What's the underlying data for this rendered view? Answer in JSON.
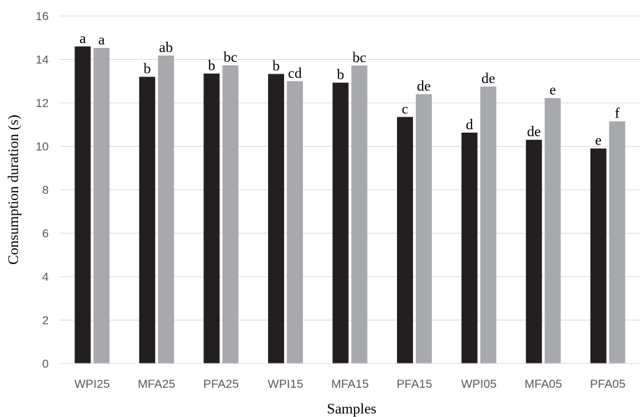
{
  "chart_data": {
    "type": "bar",
    "title": "",
    "xlabel": "Samples",
    "ylabel": "Consumption duration (s)",
    "ylim": [
      0,
      16
    ],
    "yticks": [
      0,
      2,
      4,
      6,
      8,
      10,
      12,
      14,
      16
    ],
    "grid": true,
    "categories": [
      "WPI25",
      "MFA25",
      "PFA25",
      "WPI15",
      "MFA15",
      "PFA15",
      "WPI05",
      "MFA05",
      "PFA05"
    ],
    "series": [
      {
        "color": "#231f20",
        "values": [
          14.6,
          13.2,
          13.35,
          13.33,
          12.93,
          11.35,
          10.63,
          10.3,
          9.9
        ],
        "labels": [
          "a",
          "b",
          "b",
          "b",
          "b",
          "c",
          "d",
          "de",
          "e"
        ]
      },
      {
        "color": "#a7a9ac",
        "values": [
          14.53,
          14.18,
          13.73,
          13.0,
          13.72,
          12.4,
          12.75,
          12.22,
          11.15
        ],
        "labels": [
          "a",
          "ab",
          "bc",
          "cd",
          "bc",
          "de",
          "de",
          "e",
          "f"
        ]
      }
    ],
    "legend": "none"
  }
}
